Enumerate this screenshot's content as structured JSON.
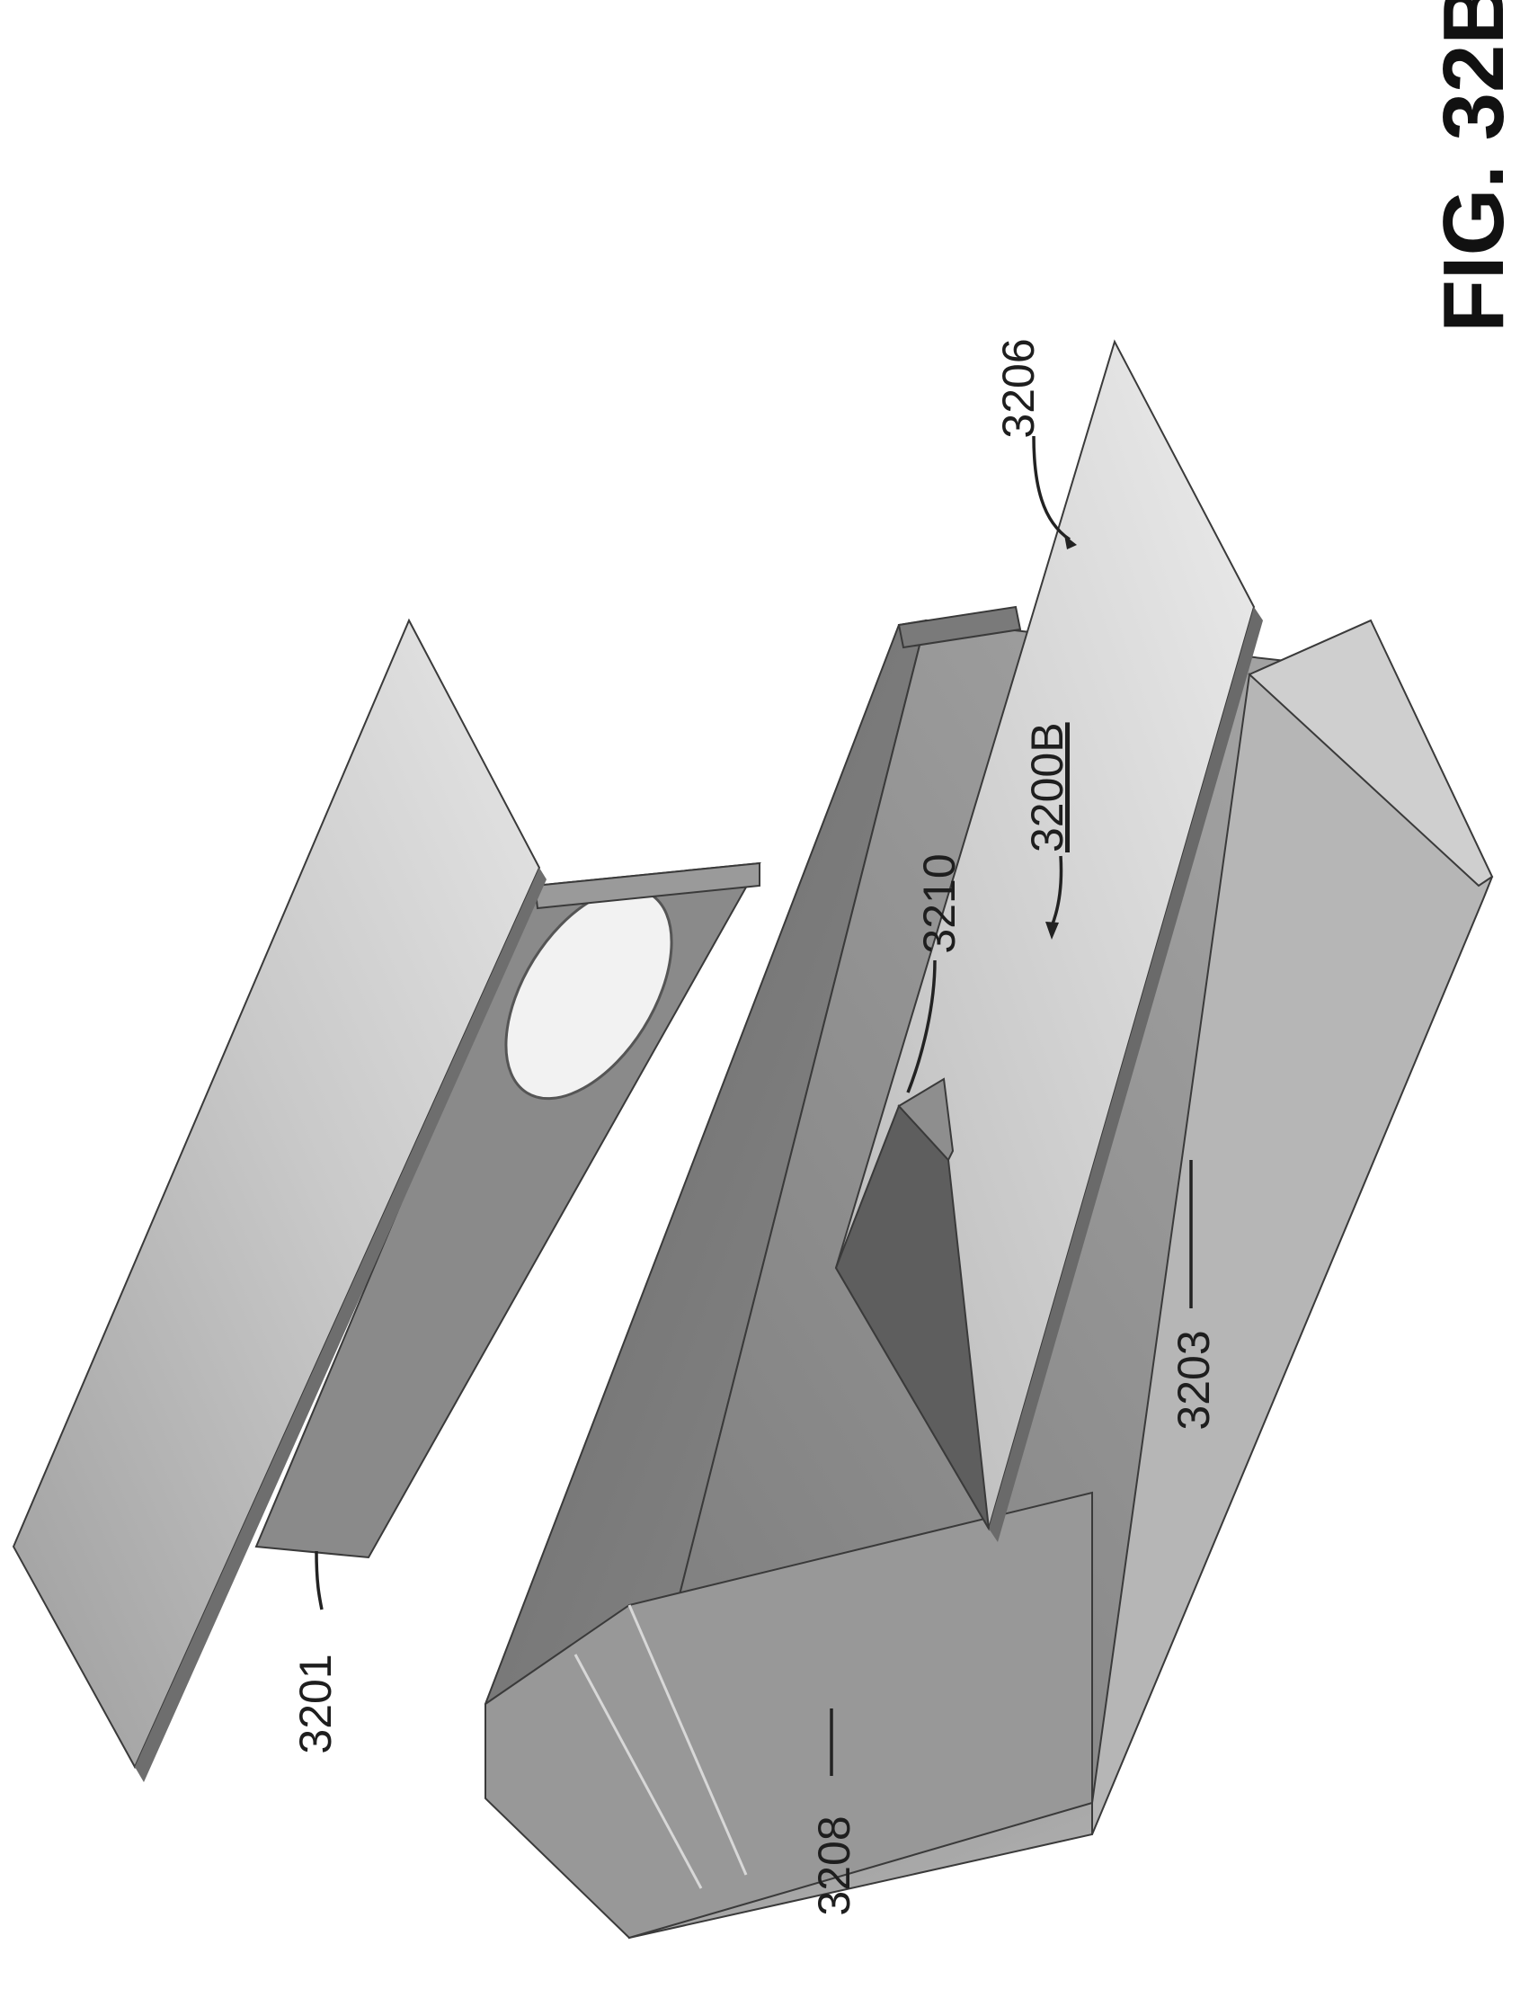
{
  "figure_label": "FIG. 32B",
  "assembly_ref": "3200B",
  "labels": {
    "lid": "3201",
    "base": "3203",
    "insert_panel": "3206",
    "end_wall": "3208",
    "fold": "3210"
  },
  "colors": {
    "background": "#ffffff",
    "light_panel": "#d4d4d4",
    "mid_panel": "#a9a9a9",
    "dark_panel": "#777777",
    "darkest_panel": "#5f5f5f",
    "line": "#222222"
  }
}
